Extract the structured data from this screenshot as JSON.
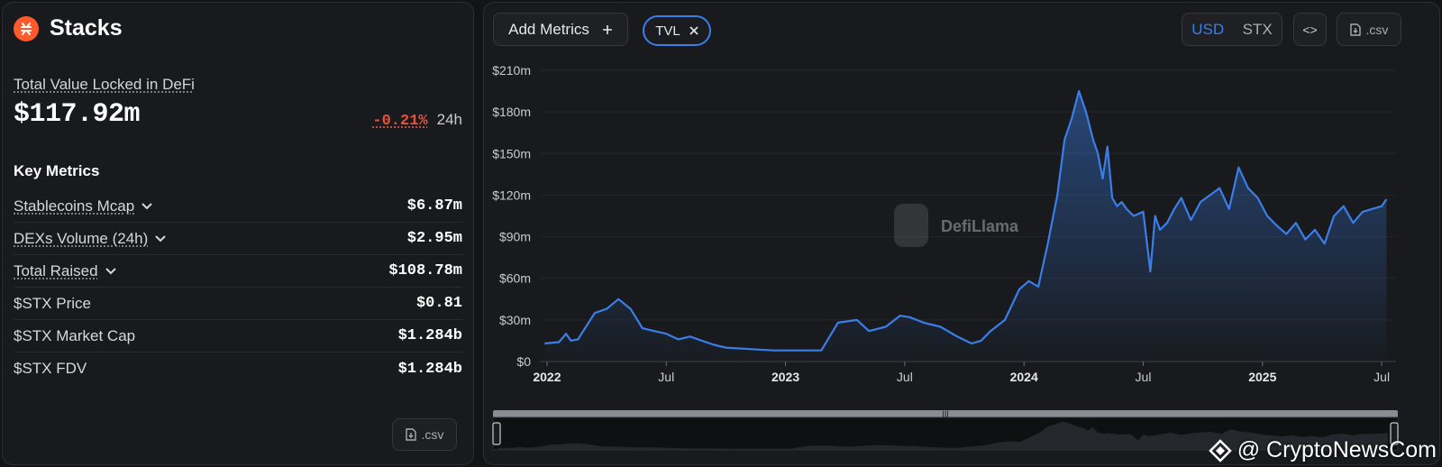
{
  "protocol": {
    "name": "Stacks",
    "logo_icon": "stacks-logo-icon",
    "logo_color": "#ff5a2b"
  },
  "tvl": {
    "label": "Total Value Locked in DeFi",
    "value": "$117.92m",
    "change": "-0.21%",
    "period": "24h"
  },
  "key_metrics": {
    "heading": "Key Metrics",
    "rows": [
      {
        "label": "Stablecoins Mcap",
        "value": "$6.87m",
        "expandable": true
      },
      {
        "label": "DEXs Volume (24h)",
        "value": "$2.95m",
        "expandable": true
      },
      {
        "label": "Total Raised",
        "value": "$108.78m",
        "expandable": true
      },
      {
        "label": "$STX Price",
        "value": "$0.81",
        "expandable": false
      },
      {
        "label": "$STX Market Cap",
        "value": "$1.284b",
        "expandable": false
      },
      {
        "label": "$STX FDV",
        "value": "$1.284b",
        "expandable": false
      }
    ]
  },
  "left_csv_label": ".csv",
  "toolbar": {
    "add_metrics_label": "Add Metrics",
    "active_metric_chip": "TVL",
    "currency_options": [
      "USD",
      "STX"
    ],
    "selected_currency": "USD",
    "embed_label": "<>",
    "csv_label": ".csv"
  },
  "chart_watermark": "DefiLlama",
  "page_watermark": "@ CryptoNewsCom",
  "colors": {
    "accent": "#3b7ee8",
    "negative": "#e4533c",
    "background": "#181a1d"
  },
  "chart_data": {
    "type": "area",
    "y_ticks": [
      "$210m",
      "$180m",
      "$150m",
      "$120m",
      "$90m",
      "$60m",
      "$30m",
      "$0"
    ],
    "x_ticks": [
      "2022",
      "Jul",
      "2023",
      "Jul",
      "2024",
      "Jul",
      "2025",
      "Jul"
    ],
    "ylim": [
      0,
      210
    ],
    "grid": true,
    "series": [
      {
        "values_unit": "USD millions",
        "x": [
          2021.99,
          2022.05,
          2022.08,
          2022.1,
          2022.13,
          2022.2,
          2022.25,
          2022.3,
          2022.35,
          2022.4,
          2022.45,
          2022.5,
          2022.55,
          2022.6,
          2022.65,
          2022.7,
          2022.75,
          2022.85,
          2022.95,
          2023.05,
          2023.15,
          2023.22,
          2023.3,
          2023.35,
          2023.42,
          2023.48,
          2023.52,
          2023.58,
          2023.65,
          2023.72,
          2023.78,
          2023.82,
          2023.86,
          2023.92,
          2023.98,
          2024.02,
          2024.06,
          2024.1,
          2024.14,
          2024.17,
          2024.2,
          2024.23,
          2024.26,
          2024.29,
          2024.31,
          2024.33,
          2024.35,
          2024.37,
          2024.39,
          2024.41,
          2024.43,
          2024.46,
          2024.5,
          2024.53,
          2024.55,
          2024.57,
          2024.6,
          2024.63,
          2024.66,
          2024.7,
          2024.74,
          2024.78,
          2024.82,
          2024.86,
          2024.9,
          2024.94,
          2024.98,
          2025.02,
          2025.06,
          2025.1,
          2025.14,
          2025.18,
          2025.22,
          2025.26,
          2025.3,
          2025.34,
          2025.38,
          2025.42,
          2025.46,
          2025.5,
          2025.52
        ],
        "values": [
          13,
          14,
          20,
          15,
          16,
          35,
          38,
          45,
          38,
          24,
          22,
          20,
          16,
          18,
          15,
          12,
          10,
          9,
          8,
          8,
          8,
          28,
          30,
          22,
          25,
          33,
          32,
          28,
          25,
          18,
          13,
          15,
          22,
          30,
          52,
          58,
          54,
          85,
          120,
          160,
          175,
          195,
          180,
          160,
          150,
          132,
          155,
          118,
          112,
          115,
          110,
          105,
          108,
          65,
          105,
          95,
          100,
          110,
          118,
          102,
          115,
          120,
          125,
          110,
          140,
          125,
          118,
          105,
          98,
          92,
          100,
          88,
          95,
          85,
          105,
          112,
          100,
          108,
          110,
          112,
          117
        ]
      }
    ]
  }
}
